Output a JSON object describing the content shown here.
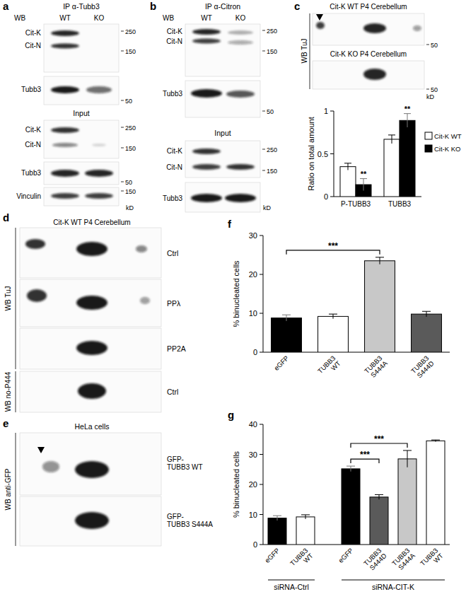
{
  "chart_data": [
    {
      "panel": "c",
      "type": "bar",
      "y_label": "Ratio on total amount",
      "categories": [
        "P-TUBB3",
        "TUBB3"
      ],
      "series": [
        {
          "name": "Cit-K WT",
          "color": "#ffffff",
          "values": [
            0.35,
            0.67
          ],
          "errors": [
            0.04,
            0.05
          ]
        },
        {
          "name": "Cit-K KO",
          "color": "#000000",
          "values": [
            0.14,
            0.89
          ],
          "errors": [
            0.07,
            0.08
          ],
          "annotations": [
            "**",
            "**"
          ]
        }
      ],
      "ylim": [
        0,
        1
      ],
      "yticks": [
        0,
        0.5,
        1
      ],
      "legend": "right"
    },
    {
      "panel": "f",
      "type": "bar",
      "y_label": "% binucleated cells",
      "categories": [
        "eGFP",
        "TUBB3 WT",
        "TUBB3 S444A",
        "TUBB3 S444D"
      ],
      "values": [
        8.8,
        9.2,
        23.5,
        9.8
      ],
      "errors": [
        0.8,
        0.6,
        0.9,
        0.7
      ],
      "colors": [
        "#000000",
        "#ffffff",
        "#c8c8c8",
        "#5a5a5a"
      ],
      "ylim": [
        0,
        30
      ],
      "yticks": [
        0,
        10,
        20,
        30
      ],
      "comparisons": [
        {
          "from": 0,
          "to": 2,
          "label": "***"
        }
      ]
    },
    {
      "panel": "g",
      "type": "bar",
      "y_label": "% binucleated cells",
      "categories": [
        "eGFP",
        "TUBB3 WT",
        "eGFP",
        "TUBB3 S444D",
        "TUBB3 S444A",
        "TUBB3 WT"
      ],
      "values": [
        8.8,
        9.2,
        25.2,
        15.8,
        28.5,
        34.5
      ],
      "errors": [
        0.8,
        0.7,
        0.9,
        0.8,
        2.8,
        0.3
      ],
      "colors": [
        "#000000",
        "#ffffff",
        "#000000",
        "#5a5a5a",
        "#c8c8c8",
        "#ffffff"
      ],
      "ylim": [
        0,
        40
      ],
      "yticks": [
        0,
        10,
        20,
        30,
        40
      ],
      "groups": [
        {
          "label": "siRNA-Ctrl",
          "size": 2
        },
        {
          "label": "siRNA-CIT-K",
          "size": 4
        }
      ],
      "comparisons": [
        {
          "from": 2,
          "to": 3,
          "label": "***"
        },
        {
          "from": 2,
          "to": 4,
          "label": "***"
        }
      ]
    }
  ],
  "blot_panels": [
    {
      "label": "a",
      "sections": [
        {
          "title": "IP α-Tubb3",
          "wb": "WB",
          "lanes": [
            "WT",
            "KO"
          ],
          "blots": [
            {
              "bands": [
                "Cit-K",
                "Cit-N"
              ],
              "markers": [
                250,
                150
              ]
            },
            {
              "bands": [
                "Tubb3"
              ],
              "markers": [
                50
              ]
            }
          ]
        },
        {
          "title": "Input",
          "blots": [
            {
              "bands": [
                "Cit-K",
                "Cit-N"
              ],
              "markers": [
                250,
                150
              ]
            },
            {
              "bands": [
                "Tubb3"
              ],
              "markers": [
                50
              ]
            },
            {
              "bands": [
                "Vinculin"
              ],
              "markers": [
                150
              ]
            }
          ]
        }
      ],
      "unit": "kD"
    },
    {
      "label": "b",
      "sections": [
        {
          "title": "IP α-Citron",
          "wb": "WB",
          "lanes": [
            "WT",
            "KO"
          ],
          "blots": [
            {
              "bands": [
                "Cit-K",
                "Cit-N"
              ],
              "markers": [
                250,
                150
              ]
            },
            {
              "bands": [
                "Tubb3"
              ],
              "markers": [
                50
              ]
            }
          ]
        },
        {
          "title": "Input",
          "blots": [
            {
              "bands": [
                "Cit-K",
                "Cit-N"
              ],
              "markers": [
                250,
                150
              ]
            },
            {
              "bands": [
                "Tubb3"
              ],
              "markers": []
            }
          ]
        }
      ],
      "unit": "kD"
    },
    {
      "label": "c",
      "wb": "WB TuJ",
      "blots": [
        {
          "title": "Cit-K WT P4 Cerebellum",
          "markers": [
            50
          ]
        },
        {
          "title": "Cit-K KO P4 Cerebellum",
          "markers": [
            50
          ]
        }
      ],
      "unit": "kD"
    },
    {
      "label": "d",
      "title": "Cit-K WT P4 Cerebellum",
      "groups": [
        {
          "wb": "WB TuJ",
          "rows": [
            "Ctrl",
            "PPλ",
            "PP2A"
          ]
        },
        {
          "wb": "WB no-P444",
          "rows": [
            "Ctrl"
          ]
        }
      ]
    },
    {
      "label": "e",
      "title": "HeLa cells",
      "wb": "WB anti-GFP",
      "rows": [
        "GFP-TUBB3 WT",
        "GFP-TUBB3 S444A"
      ]
    }
  ]
}
